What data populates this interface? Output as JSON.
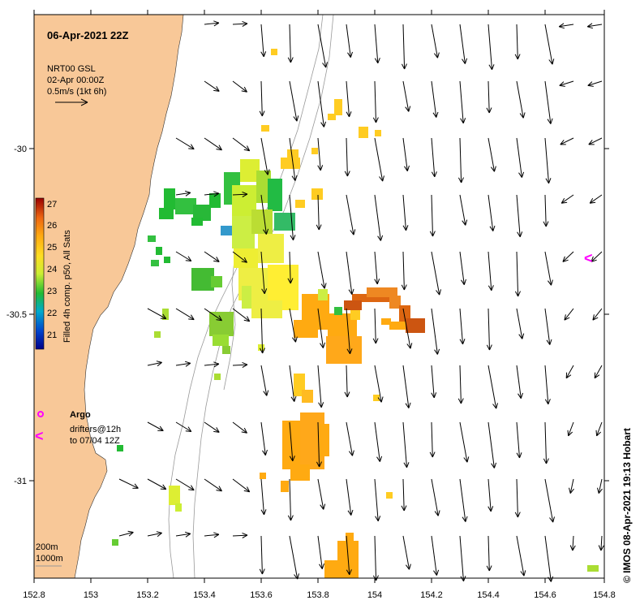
{
  "title": "06-Apr-2021 22Z",
  "source": {
    "line1": "NRT00 GSL",
    "line2": "02-Apr 00:00Z",
    "line3": "0.5m/s (1kt 6h)"
  },
  "colorbar": {
    "label": "Filled 4h comp. p50, All Sats",
    "ticks": [
      "21",
      "22",
      "23",
      "24",
      "25",
      "26",
      "27"
    ]
  },
  "argo_label": "Argo",
  "drifters": {
    "line1": "drifters@12h",
    "line2": "to 07/04 12Z"
  },
  "drifter_marker": "<",
  "bathymetry": {
    "line1": "200m",
    "line2": "1000m"
  },
  "credit": "© IMOS 08-Apr-2021 19:13 Hobart",
  "x_ticks": [
    "152.8",
    "153",
    "153.2",
    "153.4",
    "153.6",
    "153.8",
    "154",
    "154.2",
    "154.4",
    "154.6",
    "154.8"
  ],
  "y_ticks": [
    "-30",
    "-30.5",
    "-31"
  ],
  "colors": {
    "land": "#f8c898",
    "arrow": "#000000",
    "argo": "#ff00ff",
    "depth_contour": "#999999"
  }
}
